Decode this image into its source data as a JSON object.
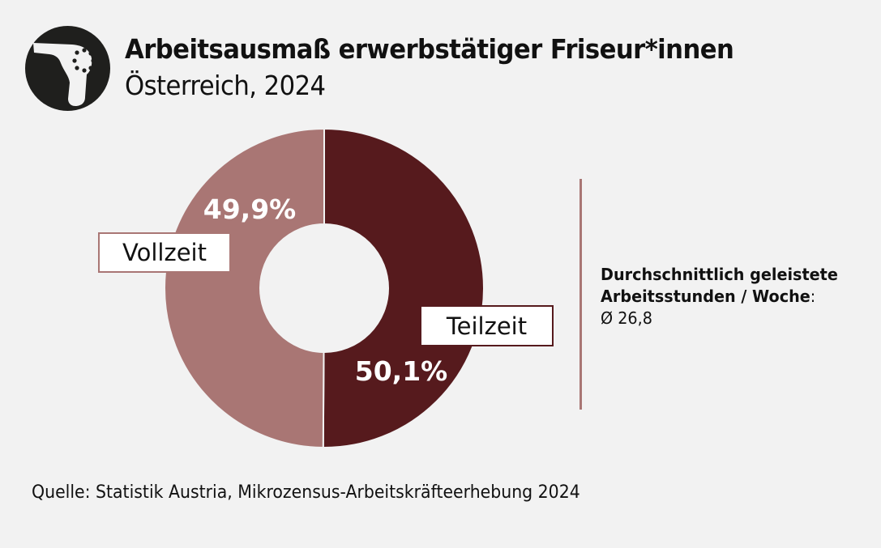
{
  "header": {
    "title": "Arbeitsausmaß erwerbstätiger Friseur*innen",
    "subtitle": "Österreich, 2024",
    "icon": "hair-dryer-icon"
  },
  "chart_data": {
    "type": "pie",
    "variant": "donut",
    "title": "Arbeitsausmaß erwerbstätiger Friseur*innen",
    "subtitle": "Österreich, 2024",
    "start": "top",
    "direction": "clockwise",
    "slices": [
      {
        "name": "Teilzeit",
        "value": 50.1,
        "label": "50,1%",
        "color": "#561a1d"
      },
      {
        "name": "Vollzeit",
        "value": 49.9,
        "label": "49,9%",
        "color": "#a97674"
      }
    ]
  },
  "info": {
    "label_line1": "Durchschnittlich geleistete",
    "label_line2": "Arbeitsstunden / Woche",
    "colon": ":",
    "value": "Ø 26,8",
    "divider_color": "#a97674"
  },
  "source": "Quelle: Statistik Austria, Mikrozensus-Arbeitskräfteerhebung 2024"
}
